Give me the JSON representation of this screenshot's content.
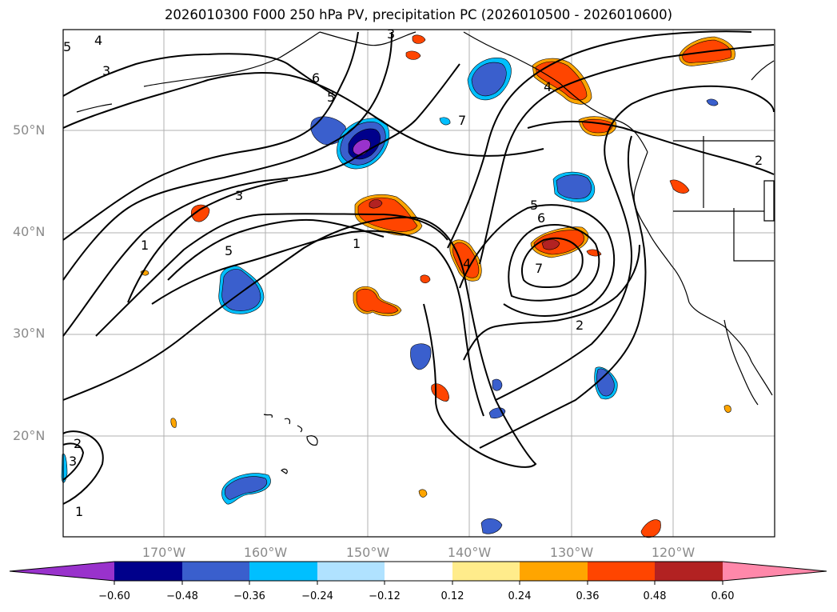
{
  "title": "2026010300 F000 250 hPa PV, precipitation PC (2026010500 - 2026010600)",
  "lat_labels": [
    "50°N",
    "40°N",
    "30°N",
    "20°N"
  ],
  "lon_labels": [
    "170°W",
    "160°W",
    "150°W",
    "140°W",
    "130°W",
    "120°W"
  ],
  "contour_labels": [
    "3",
    "6",
    "5",
    "7",
    "3",
    "1",
    "5",
    "1",
    "5",
    "6",
    "7",
    "4",
    "2",
    "2",
    "3",
    "1",
    "5",
    "3",
    "4",
    "4",
    "2"
  ],
  "colorbar": {
    "tick_labels": [
      "−0.60",
      "−0.48",
      "−0.36",
      "−0.24",
      "−0.12",
      "0.12",
      "0.24",
      "0.36",
      "0.48",
      "0.60"
    ],
    "colors": {
      "lt_-0.60": "#9932cc",
      "-0.60_-0.48": "#00008b",
      "-0.48_-0.36": "#3a5fcd",
      "-0.36_-0.24": "#00bfff",
      "-0.24_-0.12": "#b0e2ff",
      "-0.12_0.12": "#ffffff",
      "0.12_0.24": "#ffec8b",
      "0.24_0.36": "#ffa500",
      "0.36_0.48": "#ff4500",
      "0.48_0.60": "#b22222",
      "gt_0.60": "#ff88aa"
    }
  }
}
